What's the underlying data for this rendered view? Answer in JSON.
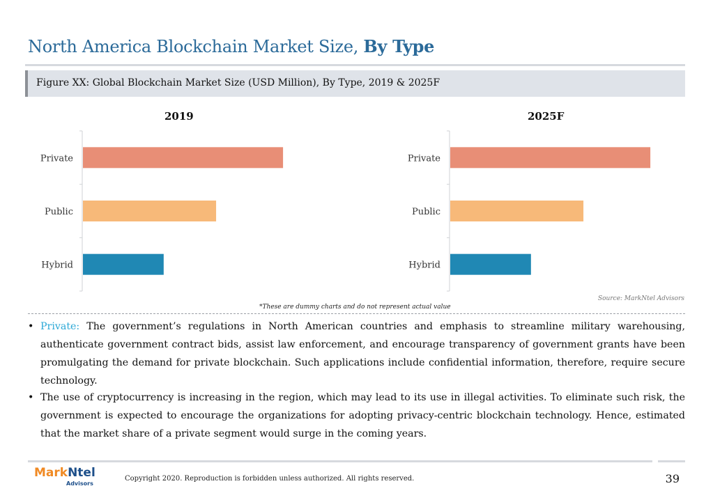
{
  "header": {
    "title_part1": "North America Blockchain Market Size,",
    "title_part2": "By Type",
    "figure_caption": "Figure XX: Global Blockchain Market Size (USD Million), By Type, 2019 & 2025F"
  },
  "chart_data": [
    {
      "type": "bar",
      "orientation": "horizontal",
      "title": "2019",
      "categories": [
        "Private",
        "Public",
        "Hybrid"
      ],
      "values": [
        2.9,
        1.93,
        1.17
      ],
      "colors": [
        "#e88e76",
        "#f7b979",
        "#2088b4"
      ],
      "xlim": [
        0,
        4
      ],
      "grid": false,
      "value_axis_labels": false
    },
    {
      "type": "bar",
      "orientation": "horizontal",
      "title": "2025F",
      "categories": [
        "Private",
        "Public",
        "Hybrid"
      ],
      "values": [
        2.9,
        1.93,
        1.17
      ],
      "colors": [
        "#e88e76",
        "#f7b979",
        "#2088b4"
      ],
      "xlim": [
        0,
        4
      ],
      "grid": false,
      "value_axis_labels": false
    }
  ],
  "notes": {
    "source": "Source: MarkNtel Advisors",
    "dummy": "*These are dummy charts and do not represent actual value"
  },
  "body": {
    "bullet": "•",
    "p1_lead": "Private:",
    "p1_text": " The government’s regulations in North American countries and emphasis to streamline military warehousing, authenticate government contract bids, assist law enforcement, and encourage transparency of government grants have been promulgating the demand for private blockchain. Such applications include confidential information, therefore, require secure technology.",
    "p2_text": "The use of cryptocurrency is increasing in the region, which may lead to its use in illegal activities. To eliminate such risk, the government is expected to encourage the organizations for adopting privacy-centric blockchain technology. Hence, estimated that the market share of a private segment would surge in the coming years."
  },
  "footer": {
    "logo_mark": "Mark",
    "logo_ntel": "Ntel",
    "logo_sub": "Advisors",
    "copyright": "Copyright 2020. Reproduction is forbidden unless authorized. All rights reserved.",
    "page_number": "39"
  },
  "colors": {
    "title": "#2b6a99",
    "accent": "#2ba8d6"
  }
}
